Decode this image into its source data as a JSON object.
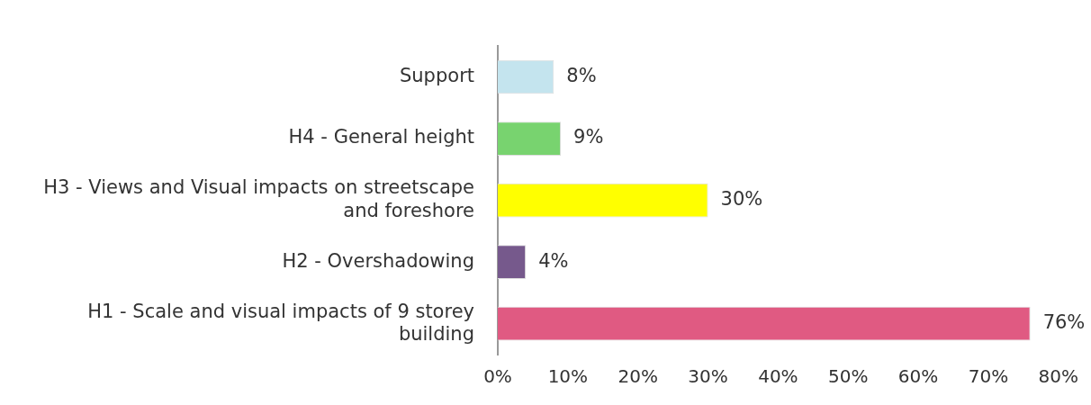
{
  "chart_data": {
    "type": "bar",
    "orientation": "horizontal",
    "categories": [
      "Support",
      "H4 - General height",
      "H3 - Views and Visual impacts on streetscape and foreshore",
      "H2 - Overshadowing",
      "H1 - Scale and visual impacts of 9 storey building"
    ],
    "values": [
      8,
      9,
      30,
      4,
      76
    ],
    "colors": [
      "#c4e4ee",
      "#78d36f",
      "#ffff00",
      "#76598c",
      "#e05a82"
    ],
    "value_labels": [
      "8%",
      "9%",
      "30%",
      "4%",
      "76%"
    ],
    "xlim": [
      0,
      80
    ],
    "xticks": [
      {
        "value": 0,
        "label": "0%"
      },
      {
        "value": 10,
        "label": "10%"
      },
      {
        "value": 20,
        "label": "20%"
      },
      {
        "value": 30,
        "label": "30%"
      },
      {
        "value": 40,
        "label": "40%"
      },
      {
        "value": 50,
        "label": "50%"
      },
      {
        "value": 60,
        "label": "60%"
      },
      {
        "value": 70,
        "label": "70%"
      },
      {
        "value": 80,
        "label": "80%"
      }
    ],
    "grid": false
  }
}
